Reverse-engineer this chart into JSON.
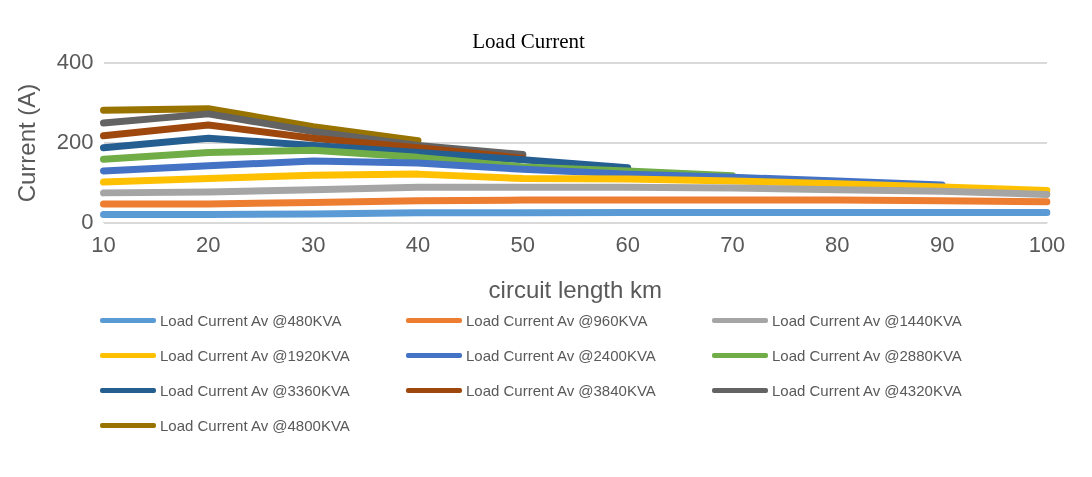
{
  "chart_data": {
    "type": "line",
    "title": "Load Current",
    "xlabel": "circuit length km",
    "ylabel": "Current (A)",
    "categories": [
      "10",
      "20",
      "30",
      "40",
      "50",
      "60",
      "70",
      "80",
      "90",
      "100"
    ],
    "ylim": [
      0,
      400
    ],
    "yticks": [
      0,
      200,
      400
    ],
    "grid": "y",
    "legend": "bottom",
    "marker": "none",
    "series": [
      {
        "name": "Load Current Av @480KVA",
        "color": "#5b9bd5",
        "values": [
          21,
          21,
          22,
          25,
          25,
          26,
          26,
          26,
          26,
          26
        ]
      },
      {
        "name": "Load Current Av @960KVA",
        "color": "#ed7d31",
        "values": [
          47,
          47,
          51,
          55,
          57,
          57,
          57,
          57,
          55,
          53
        ]
      },
      {
        "name": "Load Current Av @1440KVA",
        "color": "#a5a5a5",
        "values": [
          75,
          77,
          83,
          89,
          89,
          89,
          87,
          83,
          79,
          71
        ]
      },
      {
        "name": "Load Current Av @1920KVA",
        "color": "#ffc000",
        "values": [
          102,
          111,
          119,
          122,
          111,
          110,
          105,
          98,
          90,
          81
        ]
      },
      {
        "name": "Load Current Av @2400KVA",
        "color": "#4472c4",
        "values": [
          130,
          143,
          155,
          150,
          134,
          122,
          114,
          105,
          95,
          null
        ]
      },
      {
        "name": "Load Current Av @2880KVA",
        "color": "#70ad47",
        "values": [
          159,
          176,
          182,
          164,
          140,
          130,
          118,
          null,
          null,
          null
        ]
      },
      {
        "name": "Load Current Av @3360KVA",
        "color": "#255e91",
        "values": [
          188,
          212,
          194,
          176,
          158,
          138,
          null,
          null,
          null,
          null
        ]
      },
      {
        "name": "Load Current Av @3840KVA",
        "color": "#9e480e",
        "values": [
          218,
          245,
          212,
          188,
          162,
          null,
          null,
          null,
          null,
          null
        ]
      },
      {
        "name": "Load Current Av @4320KVA",
        "color": "#636363",
        "values": [
          250,
          273,
          229,
          194,
          171,
          null,
          null,
          null,
          null,
          null
        ]
      },
      {
        "name": "Load Current Av @4800KVA",
        "color": "#997300",
        "values": [
          282,
          286,
          241,
          206,
          null,
          null,
          null,
          null,
          null,
          null
        ]
      }
    ]
  }
}
